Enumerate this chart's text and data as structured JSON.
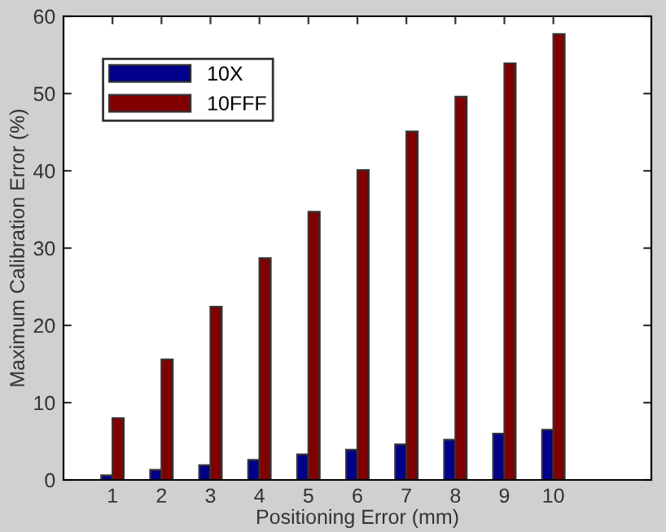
{
  "chart_data": {
    "type": "bar",
    "xlabel": "Positioning Error (mm)",
    "ylabel": "Maximum Calibration Error (%)",
    "x": [
      1,
      2,
      3,
      4,
      5,
      6,
      7,
      8,
      9,
      10
    ],
    "series": [
      {
        "name": "10X",
        "color": "#00008b",
        "values": [
          0.6,
          1.3,
          1.9,
          2.6,
          3.3,
          3.9,
          4.6,
          5.2,
          6.0,
          6.5
        ]
      },
      {
        "name": "10FFF",
        "color": "#800000",
        "values": [
          8.0,
          15.6,
          22.4,
          28.7,
          34.7,
          40.1,
          45.1,
          49.6,
          53.9,
          57.7
        ]
      }
    ],
    "xlim": [
      0,
      12
    ],
    "xticks": [
      1,
      2,
      3,
      4,
      5,
      6,
      7,
      8,
      9,
      10
    ],
    "ylim": [
      0,
      60
    ],
    "yticks": [
      0,
      10,
      20,
      30,
      40,
      50,
      60
    ],
    "grid": false,
    "legend": "top left"
  }
}
